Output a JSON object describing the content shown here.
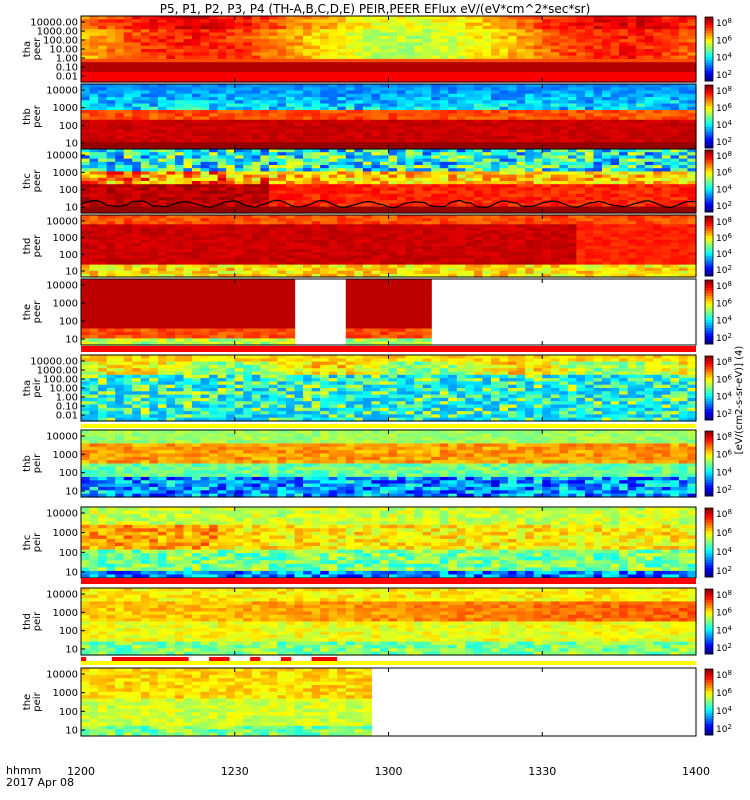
{
  "title": "P5, P1, P2, P3, P4 (TH-A,B,C,D,E) PEIR,PEER EFlux eV/(eV*cm^2*sec*sr)",
  "footer": {
    "hhmm": "hhmm",
    "date": "2017 Apr 08"
  },
  "colorbar_label": "[eV/(cm2-s-sr-eV)] (4)",
  "chart_data": [
    {
      "type": "heatmap",
      "probe": "tha",
      "species": "peer",
      "ylabel": "tha peer",
      "yscale": "log",
      "yticks": [
        "10000.00",
        "1000.00",
        "100.00",
        "10.00",
        "1.00",
        "0.10",
        "0.01"
      ],
      "xticks": [
        "1200",
        "1230",
        "1300",
        "1330",
        "1400"
      ],
      "xlim": [
        "12:00",
        "14:00"
      ],
      "cbar_ticks": [
        "10^8",
        "10^6",
        "10^4",
        "10^2"
      ],
      "data_gaps": []
    },
    {
      "type": "heatmap",
      "probe": "thb",
      "species": "peer",
      "ylabel": "thb peer",
      "yscale": "log",
      "yticks": [
        "10000",
        "1000",
        "100",
        "10"
      ],
      "cbar_ticks": [
        "10^8",
        "10^6",
        "10^4",
        "10^2"
      ],
      "data_gaps": []
    },
    {
      "type": "heatmap",
      "probe": "thc",
      "species": "peer",
      "ylabel": "thc peer",
      "yscale": "log",
      "yticks": [
        "10000",
        "1000",
        "100",
        "10"
      ],
      "cbar_ticks": [
        "10^8",
        "10^6",
        "10^4",
        "10^2"
      ],
      "data_gaps": [],
      "overlay": "spacecraft potential line"
    },
    {
      "type": "heatmap",
      "probe": "thd",
      "species": "peer",
      "ylabel": "thd peer",
      "yscale": "log",
      "yticks": [
        "10000",
        "1000",
        "100",
        "10"
      ],
      "cbar_ticks": [
        "10^8",
        "10^6",
        "10^4",
        "10^2"
      ],
      "data_gaps": []
    },
    {
      "type": "heatmap",
      "probe": "the",
      "species": "peer",
      "ylabel": "the peer",
      "yscale": "log",
      "yticks": [
        "10000",
        "1000",
        "100",
        "10"
      ],
      "cbar_ticks": [
        "10^8",
        "10^6",
        "10^4",
        "10^2"
      ],
      "data_gaps": [
        [
          "12:41",
          "12:52"
        ],
        [
          "13:08",
          "14:00"
        ]
      ]
    },
    {
      "type": "heatmap",
      "probe": "tha",
      "species": "peir",
      "ylabel": "tha peir",
      "yscale": "log",
      "yticks": [
        "10000.00",
        "1000.00",
        "100.00",
        "10.00",
        "1.00",
        "0.10",
        "0.01"
      ],
      "cbar_ticks": [
        "10^8",
        "10^6",
        "10^4",
        "10^2"
      ],
      "data_gaps": []
    },
    {
      "type": "heatmap",
      "probe": "thb",
      "species": "peir",
      "ylabel": "thb peir",
      "yscale": "log",
      "yticks": [
        "10000",
        "1000",
        "100",
        "10"
      ],
      "cbar_ticks": [
        "10^8",
        "10^6",
        "10^4",
        "10^2"
      ],
      "data_gaps": []
    },
    {
      "type": "heatmap",
      "probe": "thc",
      "species": "peir",
      "ylabel": "thc peir",
      "yscale": "log",
      "yticks": [
        "10000",
        "1000",
        "100",
        "10"
      ],
      "cbar_ticks": [
        "10^8",
        "10^6",
        "10^4",
        "10^2"
      ],
      "data_gaps": []
    },
    {
      "type": "heatmap",
      "probe": "thd",
      "species": "peir",
      "ylabel": "thd peir",
      "yscale": "log",
      "yticks": [
        "10000",
        "1000",
        "100",
        "10"
      ],
      "cbar_ticks": [
        "10^8",
        "10^6",
        "10^4",
        "10^2"
      ],
      "data_gaps": []
    },
    {
      "type": "heatmap",
      "probe": "the",
      "species": "peir",
      "ylabel": "the peir",
      "yscale": "log",
      "yticks": [
        "10000",
        "1000",
        "100",
        "10"
      ],
      "cbar_ticks": [
        "10^8",
        "10^6",
        "10^4",
        "10^2"
      ],
      "data_gaps": [
        [
          "12:56",
          "14:00"
        ]
      ]
    }
  ],
  "status_bars": [
    {
      "after_panel": 4,
      "color": "#ff0000",
      "segments": [
        [
          "12:00",
          "14:00"
        ]
      ]
    },
    {
      "after_panel": 5,
      "color": "#ffff00",
      "segments": [
        [
          "12:00",
          "14:00"
        ]
      ]
    },
    {
      "after_panel": 7,
      "color": "#ff0000",
      "segments": [
        [
          "12:00",
          "14:00"
        ]
      ]
    },
    {
      "after_panel": 8,
      "color": "#ff0000",
      "segments": [
        [
          "12:00",
          "12:01"
        ],
        [
          "12:06",
          "12:21"
        ],
        [
          "12:25",
          "12:29"
        ],
        [
          "12:33",
          "12:35"
        ],
        [
          "12:39",
          "12:41"
        ],
        [
          "12:45",
          "12:50"
        ]
      ]
    },
    {
      "after_panel": 8,
      "color": "#ffff00",
      "segments": [
        [
          "12:00",
          "14:00"
        ]
      ]
    }
  ]
}
